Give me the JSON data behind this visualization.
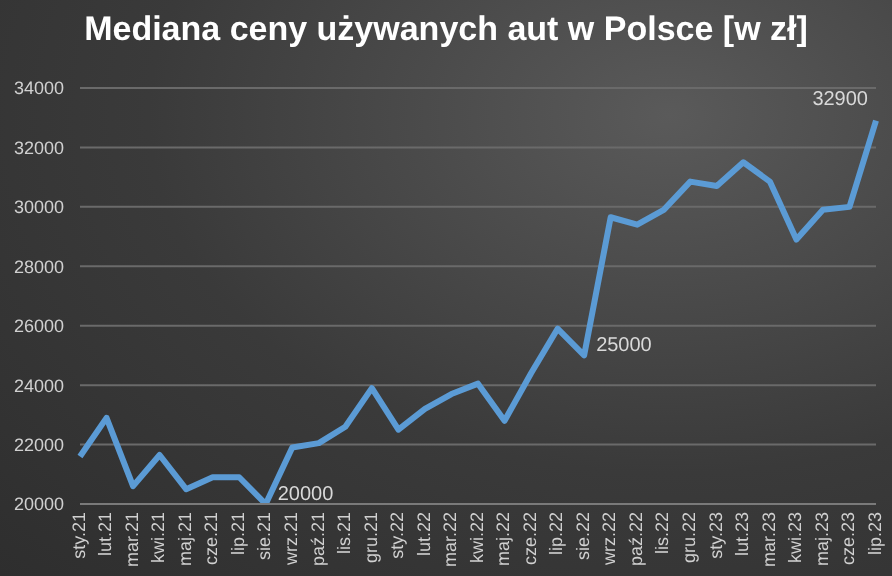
{
  "chart_data": {
    "type": "line",
    "title": "Mediana ceny używanych aut w Polsce [w zł]",
    "categories": [
      "sty.21",
      "lut.21",
      "mar.21",
      "kwi.21",
      "maj.21",
      "cze.21",
      "lip.21",
      "sie.21",
      "wrz.21",
      "paź.21",
      "lis.21",
      "gru.21",
      "sty.22",
      "lut.22",
      "mar.22",
      "kwi.22",
      "maj.22",
      "cze.22",
      "lip.22",
      "sie.22",
      "wrz.22",
      "paź.22",
      "lis.22",
      "gru.22",
      "sty.23",
      "lut.23",
      "mar.23",
      "kwi.23",
      "maj.23",
      "cze.23",
      "lip.23"
    ],
    "series": [
      {
        "color": "#5b9bd5",
        "values": [
          21600,
          22900,
          20600,
          21650,
          20500,
          20900,
          20900,
          20000,
          21900,
          22050,
          22600,
          23900,
          22500,
          23200,
          23700,
          24050,
          22800,
          24400,
          25900,
          25000,
          29650,
          29400,
          29900,
          30850,
          30700,
          31500,
          30850,
          28900,
          29900,
          30000,
          32900
        ],
        "value_labels": [
          null,
          null,
          null,
          null,
          null,
          null,
          null,
          "20000",
          null,
          null,
          null,
          null,
          null,
          null,
          null,
          null,
          null,
          null,
          null,
          "25000",
          null,
          null,
          null,
          null,
          null,
          null,
          null,
          null,
          null,
          null,
          "32900"
        ]
      }
    ],
    "ylim": [
      20000,
      34000
    ],
    "yticks": [
      20000,
      22000,
      24000,
      26000,
      28000,
      30000,
      32000,
      34000
    ],
    "grid": "y",
    "legend": false,
    "marker": "none",
    "line_style": "solid"
  }
}
